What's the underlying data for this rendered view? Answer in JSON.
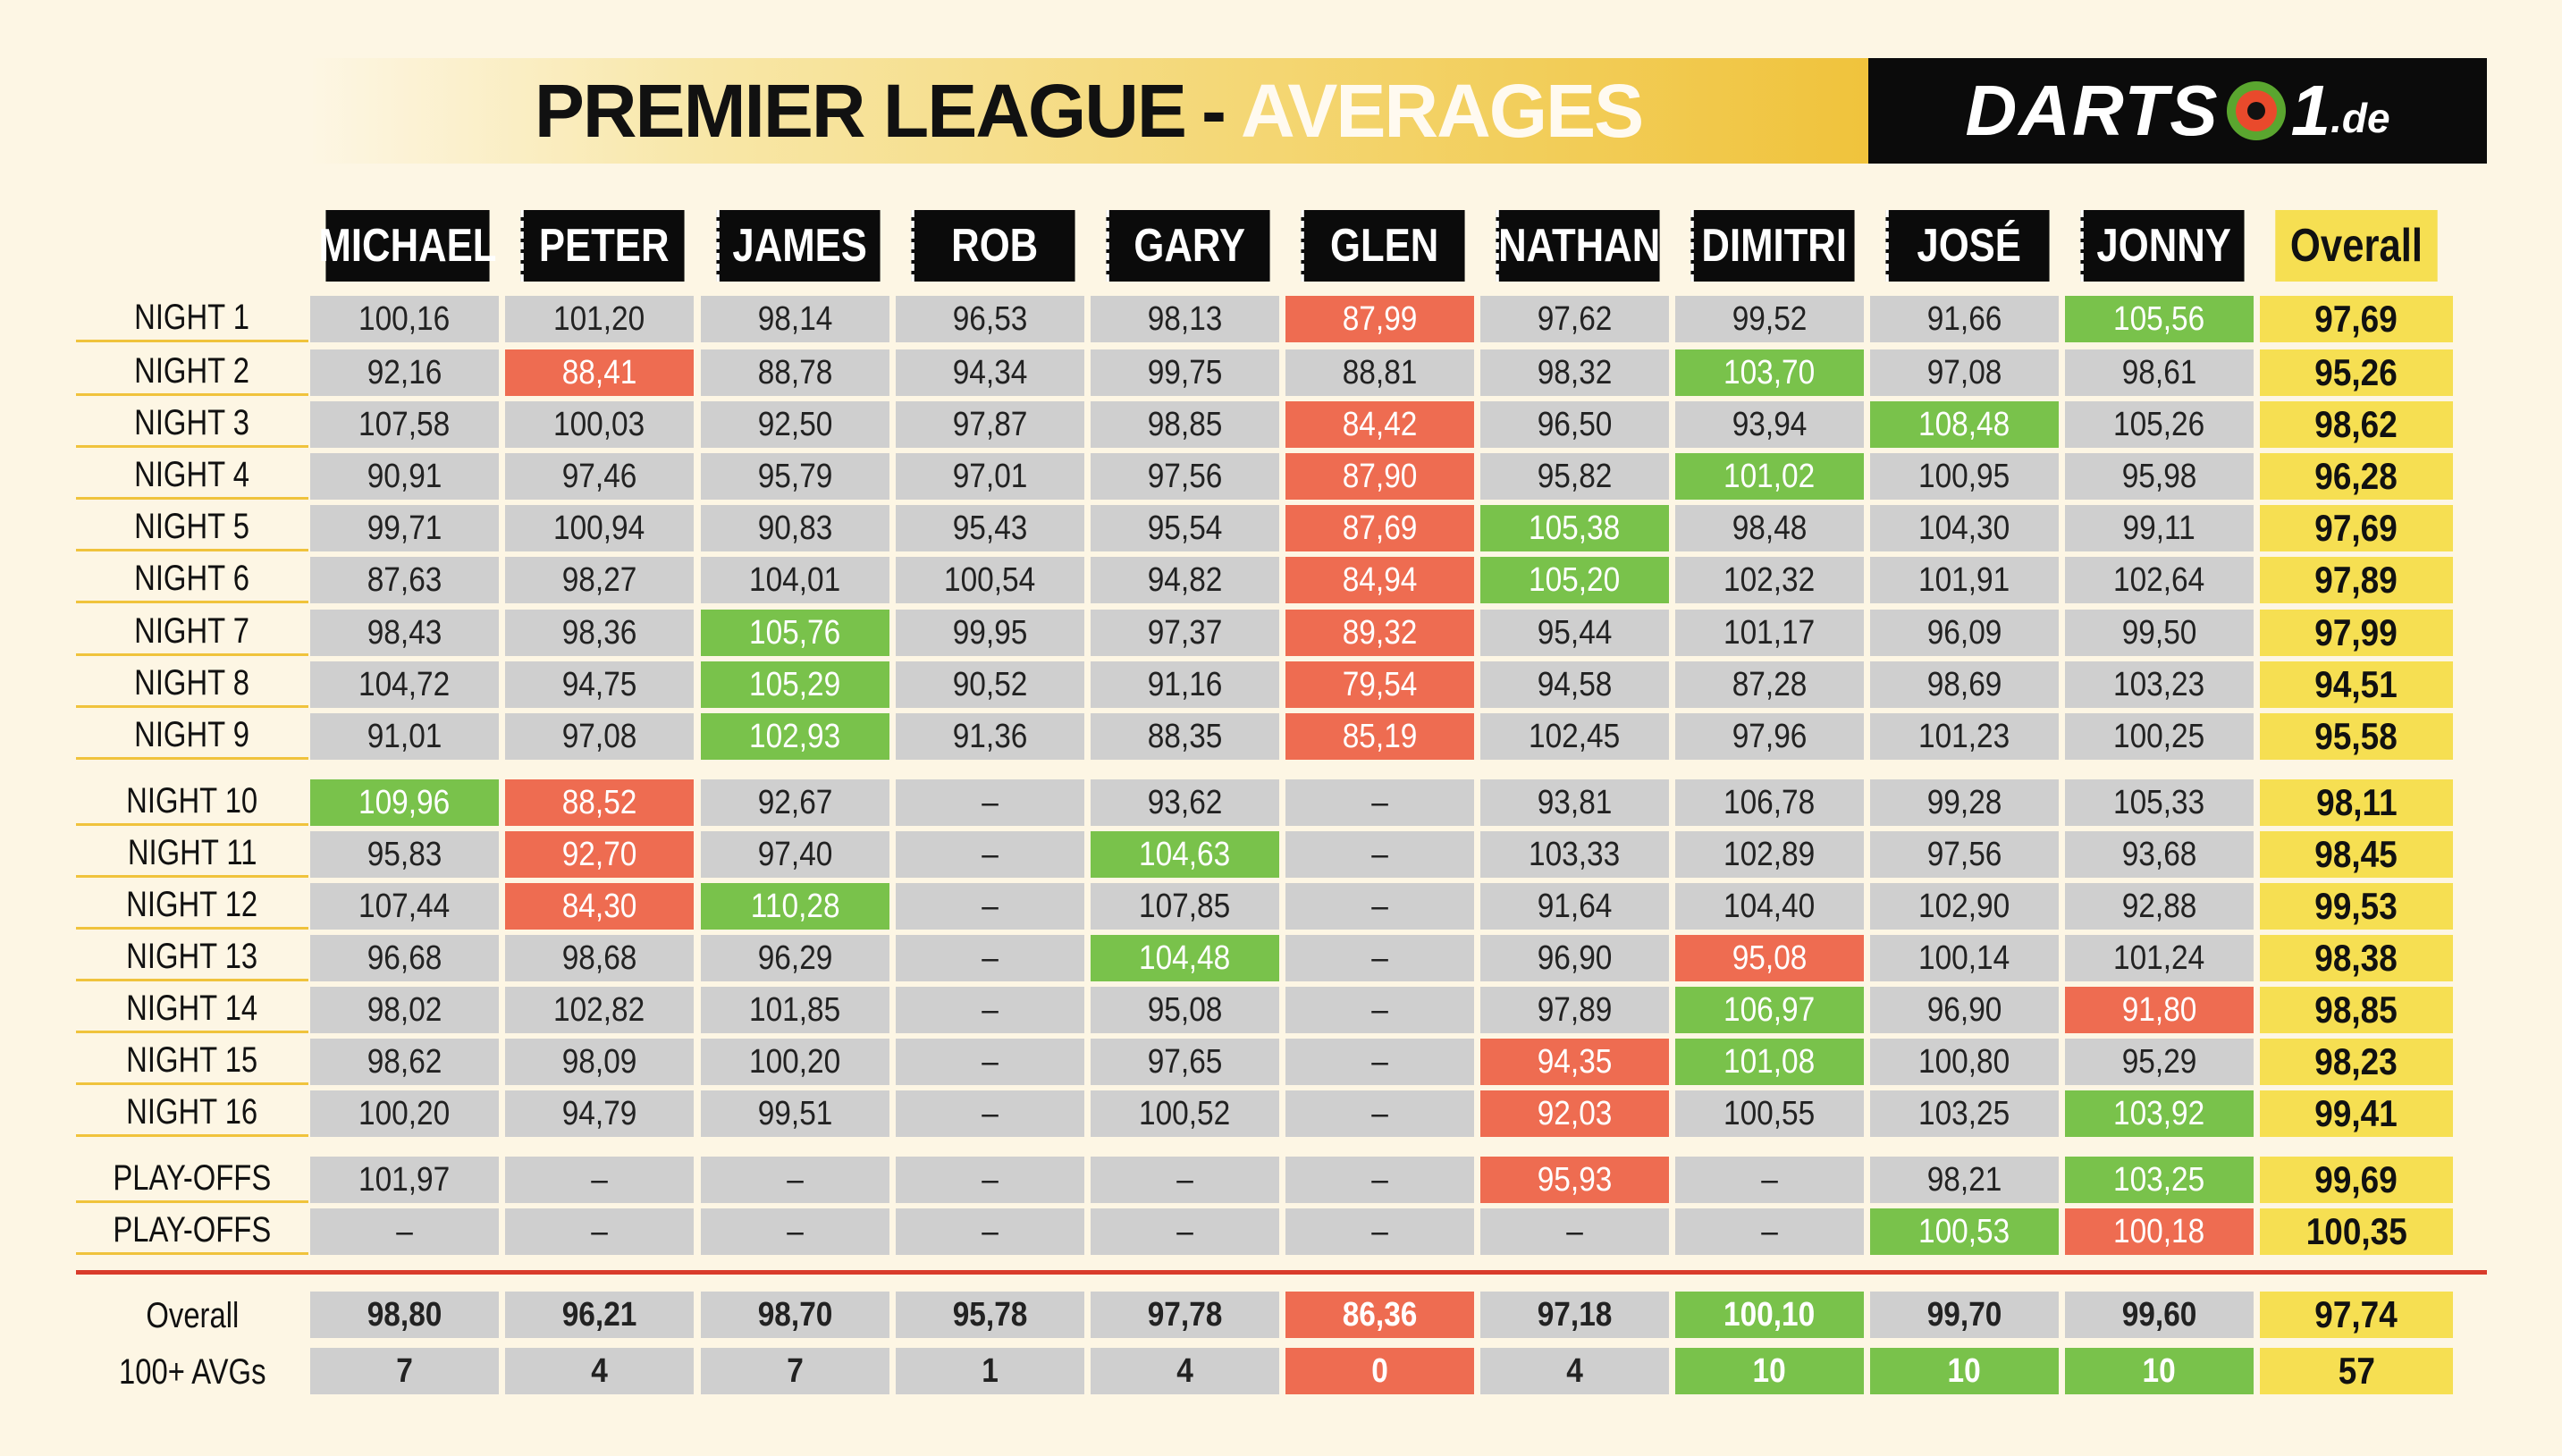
{
  "title": {
    "main": "PREMIER LEAGUE",
    "sep": "-",
    "accent": "AVERAGES"
  },
  "logo": {
    "part1": "DARTS",
    "part2": "1",
    "suffix": ".de"
  },
  "colors": {
    "highlight_high": "#79c24b",
    "highlight_low": "#ee6c51",
    "overall": "#f6df52",
    "default_cell": "#cfcfcf"
  },
  "columns": [
    "MICHAEL",
    "PETER",
    "JAMES",
    "ROB",
    "GARY",
    "GLEN",
    "NATHAN",
    "DIMITRI",
    "JOSÉ",
    "JONNY",
    "Overall"
  ],
  "rows": [
    {
      "label": "NIGHT 1",
      "values": [
        "100,16",
        "101,20",
        "98,14",
        "96,53",
        "98,13",
        "87,99",
        "97,62",
        "99,52",
        "91,66",
        "105,56",
        "97,69"
      ],
      "marks": [
        "",
        "",
        "",
        "",
        "",
        "r",
        "",
        "",
        "",
        "g",
        ""
      ]
    },
    {
      "label": "NIGHT 2",
      "values": [
        "92,16",
        "88,41",
        "88,78",
        "94,34",
        "99,75",
        "88,81",
        "98,32",
        "103,70",
        "97,08",
        "98,61",
        "95,26"
      ],
      "marks": [
        "",
        "r",
        "",
        "",
        "",
        "",
        "",
        "g",
        "",
        "",
        ""
      ]
    },
    {
      "label": "NIGHT 3",
      "values": [
        "107,58",
        "100,03",
        "92,50",
        "97,87",
        "98,85",
        "84,42",
        "96,50",
        "93,94",
        "108,48",
        "105,26",
        "98,62"
      ],
      "marks": [
        "",
        "",
        "",
        "",
        "",
        "r",
        "",
        "",
        "g",
        "",
        ""
      ]
    },
    {
      "label": "NIGHT 4",
      "values": [
        "90,91",
        "97,46",
        "95,79",
        "97,01",
        "97,56",
        "87,90",
        "95,82",
        "101,02",
        "100,95",
        "95,98",
        "96,28"
      ],
      "marks": [
        "",
        "",
        "",
        "",
        "",
        "r",
        "",
        "g",
        "",
        "",
        ""
      ]
    },
    {
      "label": "NIGHT 5",
      "values": [
        "99,71",
        "100,94",
        "90,83",
        "95,43",
        "95,54",
        "87,69",
        "105,38",
        "98,48",
        "104,30",
        "99,11",
        "97,69"
      ],
      "marks": [
        "",
        "",
        "",
        "",
        "",
        "r",
        "g",
        "",
        "",
        "",
        ""
      ]
    },
    {
      "label": "NIGHT 6",
      "values": [
        "87,63",
        "98,27",
        "104,01",
        "100,54",
        "94,82",
        "84,94",
        "105,20",
        "102,32",
        "101,91",
        "102,64",
        "97,89"
      ],
      "marks": [
        "",
        "",
        "",
        "",
        "",
        "r",
        "g",
        "",
        "",
        "",
        ""
      ]
    },
    {
      "label": "NIGHT 7",
      "values": [
        "98,43",
        "98,36",
        "105,76",
        "99,95",
        "97,37",
        "89,32",
        "95,44",
        "101,17",
        "96,09",
        "99,50",
        "97,99"
      ],
      "marks": [
        "",
        "",
        "g",
        "",
        "",
        "r",
        "",
        "",
        "",
        "",
        ""
      ]
    },
    {
      "label": "NIGHT 8",
      "values": [
        "104,72",
        "94,75",
        "105,29",
        "90,52",
        "91,16",
        "79,54",
        "94,58",
        "87,28",
        "98,69",
        "103,23",
        "94,51"
      ],
      "marks": [
        "",
        "",
        "g",
        "",
        "",
        "r",
        "",
        "",
        "",
        "",
        ""
      ]
    },
    {
      "label": "NIGHT 9",
      "values": [
        "91,01",
        "97,08",
        "102,93",
        "91,36",
        "88,35",
        "85,19",
        "102,45",
        "97,96",
        "101,23",
        "100,25",
        "95,58"
      ],
      "marks": [
        "",
        "",
        "g",
        "",
        "",
        "r",
        "",
        "",
        "",
        "",
        ""
      ]
    },
    {
      "label": "NIGHT 10",
      "values": [
        "109,96",
        "88,52",
        "92,67",
        "–",
        "93,62",
        "–",
        "93,81",
        "106,78",
        "99,28",
        "105,33",
        "98,11"
      ],
      "marks": [
        "g",
        "r",
        "",
        "",
        "",
        "",
        "",
        "",
        "",
        "",
        ""
      ]
    },
    {
      "label": "NIGHT 11",
      "values": [
        "95,83",
        "92,70",
        "97,40",
        "–",
        "104,63",
        "–",
        "103,33",
        "102,89",
        "97,56",
        "93,68",
        "98,45"
      ],
      "marks": [
        "",
        "r",
        "",
        "",
        "g",
        "",
        "",
        "",
        "",
        "",
        ""
      ]
    },
    {
      "label": "NIGHT 12",
      "values": [
        "107,44",
        "84,30",
        "110,28",
        "–",
        "107,85",
        "–",
        "91,64",
        "104,40",
        "102,90",
        "92,88",
        "99,53"
      ],
      "marks": [
        "",
        "r",
        "g",
        "",
        "",
        "",
        "",
        "",
        "",
        "",
        ""
      ]
    },
    {
      "label": "NIGHT 13",
      "values": [
        "96,68",
        "98,68",
        "96,29",
        "–",
        "104,48",
        "–",
        "96,90",
        "95,08",
        "100,14",
        "101,24",
        "98,38"
      ],
      "marks": [
        "",
        "",
        "",
        "",
        "g",
        "",
        "",
        "r",
        "",
        "",
        ""
      ]
    },
    {
      "label": "NIGHT 14",
      "values": [
        "98,02",
        "102,82",
        "101,85",
        "–",
        "95,08",
        "–",
        "97,89",
        "106,97",
        "96,90",
        "91,80",
        "98,85"
      ],
      "marks": [
        "",
        "",
        "",
        "",
        "",
        "",
        "",
        "g",
        "",
        "r",
        ""
      ]
    },
    {
      "label": "NIGHT 15",
      "values": [
        "98,62",
        "98,09",
        "100,20",
        "–",
        "97,65",
        "–",
        "94,35",
        "101,08",
        "100,80",
        "95,29",
        "98,23"
      ],
      "marks": [
        "",
        "",
        "",
        "",
        "",
        "",
        "r",
        "g",
        "",
        "",
        ""
      ]
    },
    {
      "label": "NIGHT 16",
      "values": [
        "100,20",
        "94,79",
        "99,51",
        "–",
        "100,52",
        "–",
        "92,03",
        "100,55",
        "103,25",
        "103,92",
        "99,41"
      ],
      "marks": [
        "",
        "",
        "",
        "",
        "",
        "",
        "r",
        "",
        "",
        "g",
        ""
      ]
    },
    {
      "label": "PLAY-OFFS",
      "values": [
        "101,97",
        "–",
        "–",
        "–",
        "–",
        "–",
        "95,93",
        "–",
        "98,21",
        "103,25",
        "99,69"
      ],
      "marks": [
        "",
        "",
        "",
        "",
        "",
        "",
        "r",
        "",
        "",
        "g",
        ""
      ]
    },
    {
      "label": "PLAY-OFFS",
      "values": [
        "–",
        "–",
        "–",
        "–",
        "–",
        "–",
        "–",
        "–",
        "100,53",
        "100,18",
        "100,35"
      ],
      "marks": [
        "",
        "",
        "",
        "",
        "",
        "",
        "",
        "",
        "g",
        "r",
        ""
      ]
    }
  ],
  "summary": [
    {
      "label": "Overall",
      "values": [
        "98,80",
        "96,21",
        "98,70",
        "95,78",
        "97,78",
        "86,36",
        "97,18",
        "100,10",
        "99,70",
        "99,60",
        "97,74"
      ],
      "marks": [
        "",
        "",
        "",
        "",
        "",
        "r",
        "",
        "g",
        "",
        "",
        ""
      ]
    },
    {
      "label": "100+ AVGs",
      "values": [
        "7",
        "4",
        "7",
        "1",
        "4",
        "0",
        "4",
        "10",
        "10",
        "10",
        "57"
      ],
      "marks": [
        "",
        "",
        "",
        "",
        "",
        "r",
        "",
        "g",
        "g",
        "g",
        ""
      ]
    }
  ]
}
